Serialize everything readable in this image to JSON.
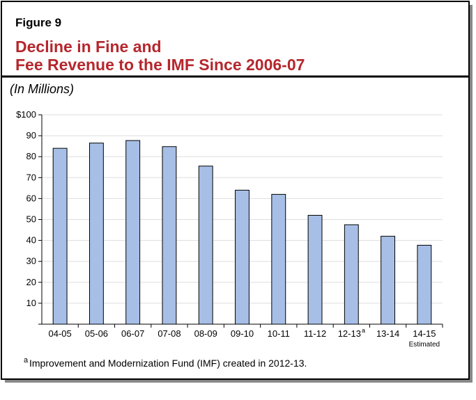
{
  "chart_data": {
    "type": "bar",
    "figure_label": "Figure 9",
    "title_lines": [
      "Decline in Fine and",
      "Fee Revenue to the IMF Since 2006-07"
    ],
    "subtitle": "(In Millions)",
    "categories": [
      "04-05",
      "05-06",
      "06-07",
      "07-08",
      "08-09",
      "09-10",
      "10-11",
      "11-12",
      "12-13",
      "13-14",
      "14-15"
    ],
    "category_superscript": "a",
    "category_sublabel": "Estimated",
    "values": [
      84,
      86.5,
      87.7,
      84.8,
      75.5,
      64,
      62,
      52,
      47.5,
      42,
      37.7
    ],
    "color": "#a7bfe6",
    "ylim": [
      0,
      100
    ],
    "yticks": [
      10,
      20,
      30,
      40,
      50,
      60,
      70,
      80,
      90,
      {
        "value": 100,
        "label": "$100"
      }
    ],
    "grid": true,
    "footnote": {
      "marker": "a",
      "text": "Improvement and Modernization Fund (IMF) created in 2012-13."
    }
  }
}
